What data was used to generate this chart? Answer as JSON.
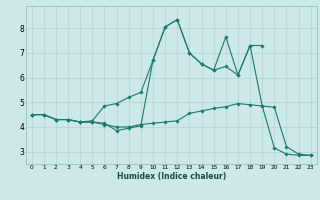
{
  "xlabel": "Humidex (Indice chaleur)",
  "bg_color": "#cce8e8",
  "grid_color": "#b0d4d4",
  "line_color": "#1a7a6e",
  "xlim": [
    -0.5,
    23.5
  ],
  "ylim": [
    2.5,
    8.9
  ],
  "yticks": [
    3,
    4,
    5,
    6,
    7,
    8
  ],
  "xticks": [
    0,
    1,
    2,
    3,
    4,
    5,
    6,
    7,
    8,
    9,
    10,
    11,
    12,
    13,
    14,
    15,
    16,
    17,
    18,
    19,
    20,
    21,
    22,
    23
  ],
  "line1_x": [
    0,
    1,
    2,
    3,
    4,
    5,
    6,
    7,
    8,
    9,
    10,
    11,
    12,
    13,
    14,
    15,
    16,
    17,
    18,
    19,
    20,
    21,
    22,
    23
  ],
  "line1_y": [
    4.5,
    4.5,
    4.3,
    4.3,
    4.2,
    4.2,
    4.1,
    4.0,
    4.0,
    4.1,
    4.15,
    4.2,
    4.25,
    4.55,
    4.65,
    4.75,
    4.82,
    4.95,
    4.9,
    4.85,
    4.8,
    3.2,
    2.9,
    2.85
  ],
  "line2_x": [
    0,
    1,
    2,
    3,
    4,
    5,
    6,
    7,
    8,
    9,
    10,
    11,
    12,
    13,
    14,
    15,
    16,
    17,
    18,
    19,
    20,
    21,
    22,
    23
  ],
  "line2_y": [
    4.5,
    4.5,
    4.3,
    4.3,
    4.2,
    4.2,
    4.15,
    3.85,
    3.95,
    4.05,
    6.7,
    8.05,
    8.35,
    7.0,
    6.55,
    6.3,
    6.45,
    6.1,
    7.3,
    4.85,
    3.15,
    2.9,
    2.85,
    2.85
  ],
  "line3_x": [
    0,
    1,
    2,
    3,
    4,
    5,
    6,
    7,
    8,
    9,
    10,
    11,
    12,
    13,
    14,
    15,
    16,
    17,
    18,
    19
  ],
  "line3_y": [
    4.5,
    4.5,
    4.3,
    4.3,
    4.2,
    4.25,
    4.85,
    4.95,
    5.2,
    5.4,
    6.7,
    8.05,
    8.35,
    7.0,
    6.55,
    6.3,
    7.65,
    6.1,
    7.3,
    7.3
  ]
}
